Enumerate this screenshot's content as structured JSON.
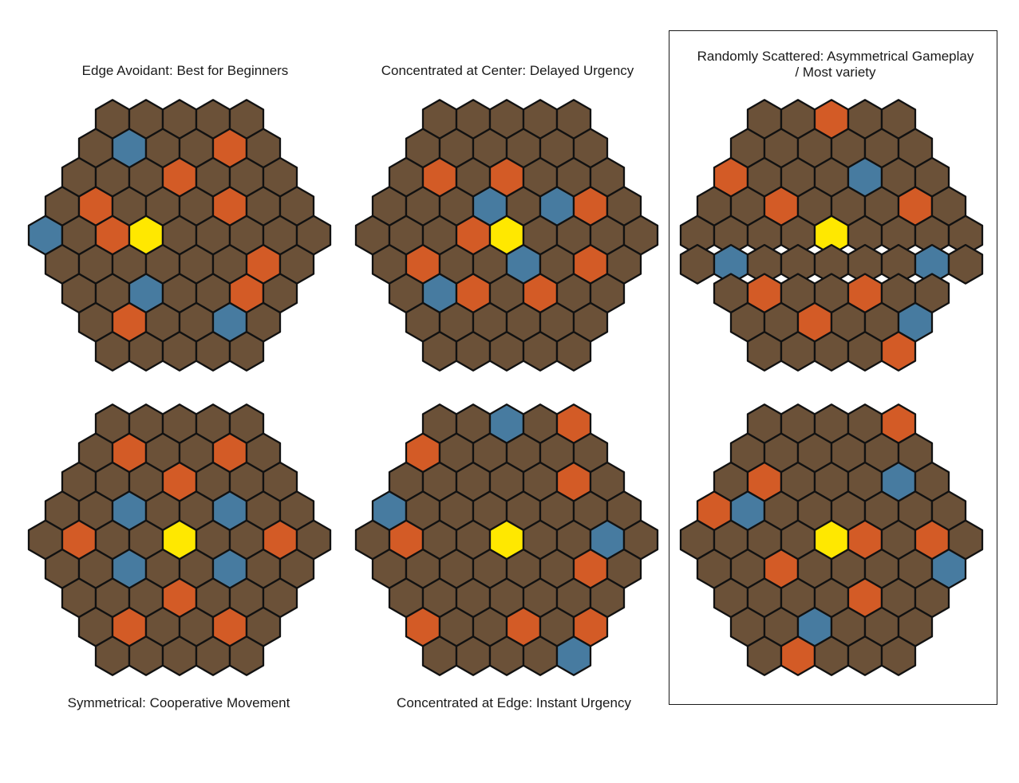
{
  "colors": {
    "ground": "#6b5138",
    "orange": "#d35b26",
    "blue": "#477ba0",
    "yellow": "#ffe800",
    "outline": "#111111"
  },
  "legend_codes": {
    "G": "ground",
    "O": "orange",
    "B": "blue",
    "Y": "yellow"
  },
  "panels": [
    {
      "title": "Edge Avoidant: Best for Beginners",
      "rows": [
        "GGGGG",
        "GBGGOG",
        "GGGOGGG",
        "GOGGGOGG",
        "BGOYGGGGG",
        "GGGGGGOG",
        "GGBGGOG",
        "GOGGBG",
        "GGGGG"
      ]
    },
    {
      "title": "Concentrated at Center: Delayed Urgency",
      "rows": [
        "GGGGG",
        "GGGGGG",
        "GOGOGGG",
        "GGGBGBOG",
        "GGGOYGGGG",
        "GOGGBGOG",
        "GBOGOGG",
        "GGGGGG",
        "GGGGG"
      ]
    },
    {
      "title": "Randomly Scattered: Asymmetrical Gameplay\n/ Most variety",
      "rows": [
        "GGOGG",
        "GGGGGG",
        "OGGGBGG",
        "GGOGGGOG",
        "GGGGYGGGG",
        "GBGGGGGBG",
        "GOGGOGG",
        "GGOGGB",
        "GGGGO"
      ]
    },
    {
      "title": "Symmetrical: Cooperative Movement",
      "rows": [
        "GGGGG",
        "GOGGOG",
        "GGGOGGG",
        "GGBGGBGG",
        "GOGGYGGOG",
        "GGBGGBGG",
        "GGGOGGG",
        "GOGGOG",
        "GGGGG"
      ]
    },
    {
      "title": "Concentrated at Edge: Instant Urgency",
      "rows": [
        "GGBGO",
        "OGGGGG",
        "GGGGGOG",
        "BGGGGGGG",
        "GOGGYGGBG",
        "GGGGGGOG",
        "GGGGGGG",
        "OGGOGO",
        "GGGGB"
      ]
    },
    {
      "title": "",
      "rows": [
        "GGGGO",
        "GGGGGG",
        "GOGGGBG",
        "OBGGGGGG",
        "GGGGYOGOG",
        "GGOGGGGB",
        "GGGGOGG",
        "GGBGGG",
        "GOGGG"
      ]
    }
  ]
}
